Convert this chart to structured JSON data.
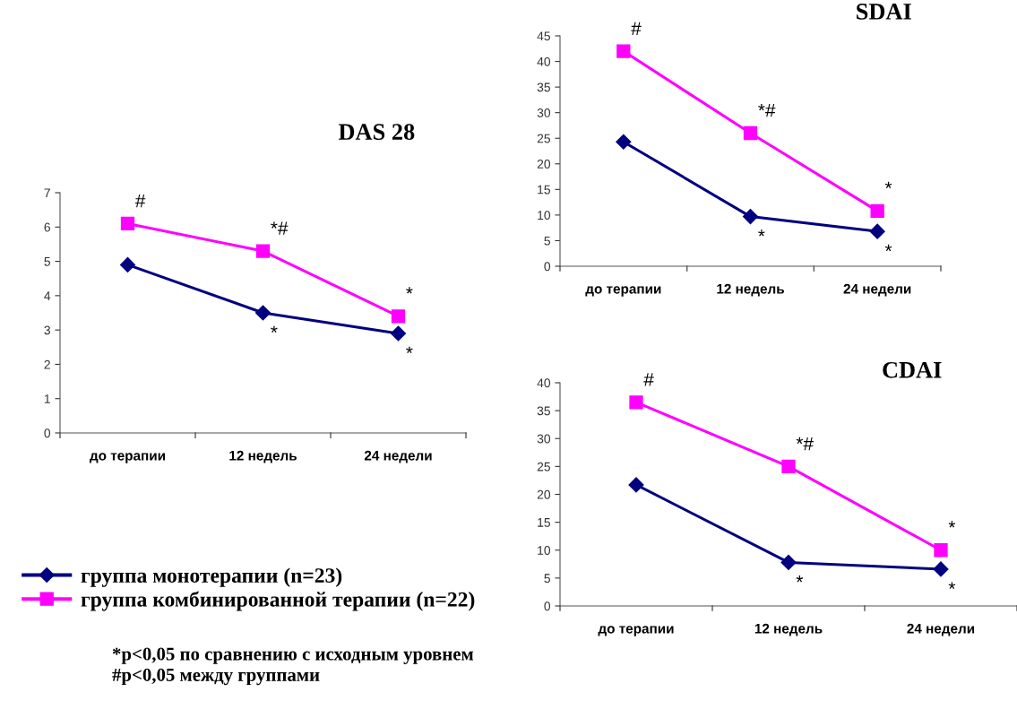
{
  "chart_data": [
    {
      "type": "line",
      "title": "DAS 28",
      "categories": [
        "до терапии",
        "12 недель",
        "24 недели"
      ],
      "ylim": [
        0,
        7
      ],
      "yticks": [
        0,
        1,
        2,
        3,
        4,
        5,
        6,
        7
      ],
      "grid": false,
      "legend": "bottom",
      "series": [
        {
          "name": "группа монотерапии (n=23)",
          "color": "#000080",
          "marker": "diamond",
          "values": [
            4.9,
            3.5,
            2.9
          ]
        },
        {
          "name": "группа комбинированной терапии (n=22)",
          "color": "#ff00ff",
          "marker": "square",
          "values": [
            6.1,
            5.3,
            3.4
          ]
        }
      ],
      "annotations": [
        {
          "text": "#",
          "x": "до терапии",
          "y": 6.1
        },
        {
          "text": "*#",
          "x": "12 недель",
          "y": 5.3
        },
        {
          "text": "*",
          "x": "24 недели",
          "y": 3.4
        },
        {
          "text": "*",
          "x": "12 недель",
          "y": 3.5
        },
        {
          "text": "*",
          "x": "24 недели",
          "y": 2.9
        },
        "*p<0,05 по сравнению с исходным уровнем",
        "#p<0,05 между группами"
      ]
    },
    {
      "type": "line",
      "title": "SDAI",
      "categories": [
        "до терапии",
        "12 недель",
        "24 недели"
      ],
      "ylim": [
        0,
        45
      ],
      "yticks": [
        0,
        5,
        10,
        15,
        20,
        25,
        30,
        35,
        40,
        45
      ],
      "grid": false,
      "series": [
        {
          "color": "#000080",
          "marker": "diamond",
          "values": [
            24.3,
            9.7,
            6.8
          ]
        },
        {
          "color": "#ff00ff",
          "marker": "square",
          "values": [
            42,
            26,
            10.8
          ]
        }
      ],
      "annotations": [
        {
          "text": "#",
          "x": "до терапии",
          "y": 42
        },
        {
          "text": "*#",
          "x": "12 недель",
          "y": 26
        },
        {
          "text": "*",
          "x": "24 недели",
          "y": 10.8
        },
        {
          "text": "*",
          "x": "12 недель",
          "y": 9.7
        },
        {
          "text": "*",
          "x": "24 недели",
          "y": 6.8
        }
      ]
    },
    {
      "type": "line",
      "title": "CDAI",
      "categories": [
        "до терапии",
        "12 недель",
        "24 недели"
      ],
      "ylim": [
        0,
        40
      ],
      "yticks": [
        0,
        5,
        10,
        15,
        20,
        25,
        30,
        35,
        40
      ],
      "grid": false,
      "series": [
        {
          "color": "#000080",
          "marker": "diamond",
          "values": [
            21.7,
            7.8,
            6.6
          ]
        },
        {
          "color": "#ff00ff",
          "marker": "square",
          "values": [
            36.5,
            25,
            10
          ]
        }
      ],
      "annotations": [
        {
          "text": "#",
          "x": "до терапии",
          "y": 36.5
        },
        {
          "text": "*#",
          "x": "12 недель",
          "y": 25
        },
        {
          "text": "*",
          "x": "24 недели",
          "y": 10
        },
        {
          "text": "*",
          "x": "12 недель",
          "y": 7.8
        },
        {
          "text": "*",
          "x": "24 недели",
          "y": 6.6
        }
      ]
    }
  ]
}
